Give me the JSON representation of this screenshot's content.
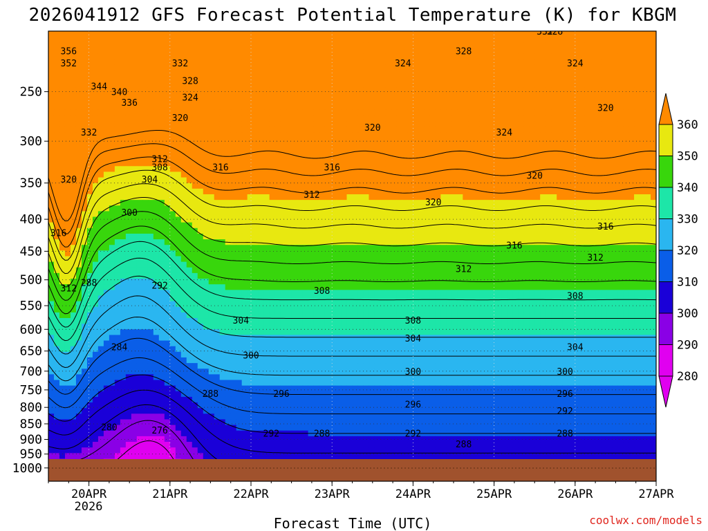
{
  "chart_data": {
    "type": "heatmap",
    "title": "2026041912 GFS Forecast Potential Temperature (K) for KBGM",
    "xlabel": "Forecast Time (UTC)",
    "ylabel": "",
    "credit": "coolwx.com/models",
    "x_ticks": [
      "20APR",
      "21APR",
      "22APR",
      "23APR",
      "24APR",
      "25APR",
      "26APR",
      "27APR"
    ],
    "x_tick_sub": "2026",
    "x_range": [
      "2026-04-19T12Z",
      "2026-04-27T00Z"
    ],
    "y_scale": "pressure (log-p, inverted)",
    "y_ticks": [
      250,
      300,
      350,
      400,
      450,
      500,
      550,
      600,
      650,
      700,
      750,
      800,
      850,
      900,
      950,
      1000
    ],
    "ylim": [
      1000,
      200
    ],
    "colorbar": {
      "labels": [
        280,
        290,
        300,
        310,
        320,
        330,
        340,
        350,
        360
      ],
      "colors": [
        "#e000f0",
        "#8a00e6",
        "#1a00d8",
        "#0a5ee8",
        "#2ab6f0",
        "#1de6a8",
        "#38d60c",
        "#e8e810",
        "#ff8a00"
      ]
    },
    "ground_color": "#a0522d",
    "grid": true,
    "contour_interval_K": 4,
    "contour_labels": [
      {
        "t": "2026-04-19T18Z",
        "p": 215,
        "v": 356
      },
      {
        "t": "2026-04-19T18Z",
        "p": 225,
        "v": 352
      },
      {
        "t": "2026-04-20T03Z",
        "p": 245,
        "v": 344
      },
      {
        "t": "2026-04-20T09Z",
        "p": 250,
        "v": 340
      },
      {
        "t": "2026-04-20T12Z",
        "p": 260,
        "v": 336
      },
      {
        "t": "2026-04-20T00Z",
        "p": 290,
        "v": 332
      },
      {
        "t": "2026-04-19T18Z",
        "p": 345,
        "v": 320
      },
      {
        "t": "2026-04-19T15Z",
        "p": 420,
        "v": 316
      },
      {
        "t": "2026-04-19T18Z",
        "p": 515,
        "v": 312
      },
      {
        "t": "2026-04-20T00Z",
        "p": 505,
        "v": 288
      },
      {
        "t": "2026-04-20T12Z",
        "p": 390,
        "v": 300
      },
      {
        "t": "2026-04-20T18Z",
        "p": 345,
        "v": 304
      },
      {
        "t": "2026-04-20T21Z",
        "p": 330,
        "v": 308
      },
      {
        "t": "2026-04-20T21Z",
        "p": 320,
        "v": 312
      },
      {
        "t": "2026-04-20T21Z",
        "p": 510,
        "v": 292
      },
      {
        "t": "2026-04-20T09Z",
        "p": 640,
        "v": 284
      },
      {
        "t": "2026-04-20T06Z",
        "p": 860,
        "v": 280
      },
      {
        "t": "2026-04-20T21Z",
        "p": 870,
        "v": 276
      },
      {
        "t": "2026-04-21T12Z",
        "p": 760,
        "v": 288
      },
      {
        "t": "2026-04-21T03Z",
        "p": 225,
        "v": 332
      },
      {
        "t": "2026-04-21T06Z",
        "p": 240,
        "v": 328
      },
      {
        "t": "2026-04-21T06Z",
        "p": 255,
        "v": 324
      },
      {
        "t": "2026-04-21T03Z",
        "p": 275,
        "v": 320
      },
      {
        "t": "2026-04-21T15Z",
        "p": 330,
        "v": 316
      },
      {
        "t": "2026-04-21T21Z",
        "p": 580,
        "v": 304
      },
      {
        "t": "2026-04-22T00Z",
        "p": 660,
        "v": 300
      },
      {
        "t": "2026-04-22T09Z",
        "p": 760,
        "v": 296
      },
      {
        "t": "2026-04-22T06Z",
        "p": 880,
        "v": 292
      },
      {
        "t": "2026-04-22T21Z",
        "p": 520,
        "v": 308
      },
      {
        "t": "2026-04-22T18Z",
        "p": 365,
        "v": 312
      },
      {
        "t": "2026-04-23T00Z",
        "p": 330,
        "v": 316
      },
      {
        "t": "2026-04-22T21Z",
        "p": 880,
        "v": 288
      },
      {
        "t": "2026-04-23T12Z",
        "p": 285,
        "v": 320
      },
      {
        "t": "2026-04-23T21Z",
        "p": 225,
        "v": 324
      },
      {
        "t": "2026-04-24T00Z",
        "p": 580,
        "v": 308
      },
      {
        "t": "2026-04-24T00Z",
        "p": 620,
        "v": 304
      },
      {
        "t": "2026-04-24T00Z",
        "p": 700,
        "v": 300
      },
      {
        "t": "2026-04-24T00Z",
        "p": 790,
        "v": 296
      },
      {
        "t": "2026-04-24T00Z",
        "p": 880,
        "v": 292
      },
      {
        "t": "2026-04-24T06Z",
        "p": 375,
        "v": 320
      },
      {
        "t": "2026-04-24T15Z",
        "p": 480,
        "v": 312
      },
      {
        "t": "2026-04-24T15Z",
        "p": 915,
        "v": 288
      },
      {
        "t": "2026-04-24T15Z",
        "p": 215,
        "v": 328
      },
      {
        "t": "2026-04-25T03Z",
        "p": 290,
        "v": 324
      },
      {
        "t": "2026-04-25T06Z",
        "p": 440,
        "v": 316
      },
      {
        "t": "2026-04-25T12Z",
        "p": 340,
        "v": 320
      },
      {
        "t": "2026-04-25T15Z",
        "p": 200,
        "v": 332
      },
      {
        "t": "2026-04-25T18Z",
        "p": 200,
        "v": 328
      },
      {
        "t": "2026-04-26T00Z",
        "p": 225,
        "v": 324
      },
      {
        "t": "2026-04-26T00Z",
        "p": 640,
        "v": 304
      },
      {
        "t": "2026-04-25T21Z",
        "p": 700,
        "v": 300
      },
      {
        "t": "2026-04-25T21Z",
        "p": 760,
        "v": 296
      },
      {
        "t": "2026-04-25T21Z",
        "p": 810,
        "v": 292
      },
      {
        "t": "2026-04-25T21Z",
        "p": 880,
        "v": 288
      },
      {
        "t": "2026-04-26T00Z",
        "p": 530,
        "v": 308
      },
      {
        "t": "2026-04-26T06Z",
        "p": 460,
        "v": 312
      },
      {
        "t": "2026-04-26T09Z",
        "p": 410,
        "v": 316
      },
      {
        "t": "2026-04-26T09Z",
        "p": 265,
        "v": 320
      }
    ]
  }
}
